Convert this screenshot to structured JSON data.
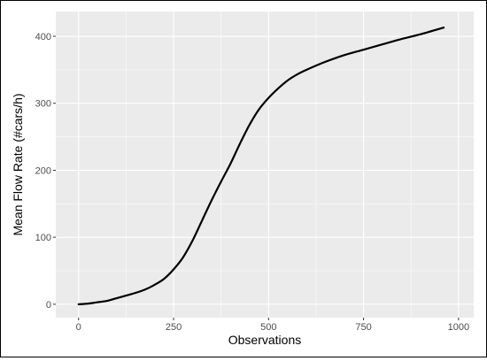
{
  "chart_data": {
    "type": "line",
    "title": "",
    "xlabel": "Observations",
    "ylabel": "Mean Flow Rate (#cars/h)",
    "xlim": [
      -60,
      1040
    ],
    "ylim": [
      -20,
      437
    ],
    "xticks": [
      0,
      250,
      500,
      750,
      1000
    ],
    "yticks": [
      0,
      100,
      200,
      300,
      400
    ],
    "xtick_labels": [
      "0",
      "250",
      "500",
      "750",
      "1000"
    ],
    "ytick_labels": [
      "0",
      "100",
      "200",
      "300",
      "400"
    ],
    "grid": true,
    "legend": "none",
    "series": [
      {
        "x": [
          0,
          25,
          50,
          75,
          100,
          125,
          150,
          175,
          200,
          225,
          250,
          275,
          300,
          325,
          350,
          375,
          400,
          425,
          450,
          475,
          500,
          525,
          550,
          575,
          600,
          650,
          700,
          750,
          800,
          850,
          900,
          961
        ],
        "y": [
          0,
          1,
          3,
          5,
          9,
          13,
          17,
          22,
          29,
          38,
          52,
          70,
          95,
          125,
          155,
          183,
          210,
          240,
          268,
          291,
          308,
          322,
          334,
          343,
          350,
          362,
          372,
          380,
          388,
          396,
          403,
          413
        ]
      }
    ]
  },
  "colors": {
    "panel_background": "#ebebeb",
    "grid_major": "#ffffff",
    "line": "#000000",
    "frame": "#000000"
  }
}
